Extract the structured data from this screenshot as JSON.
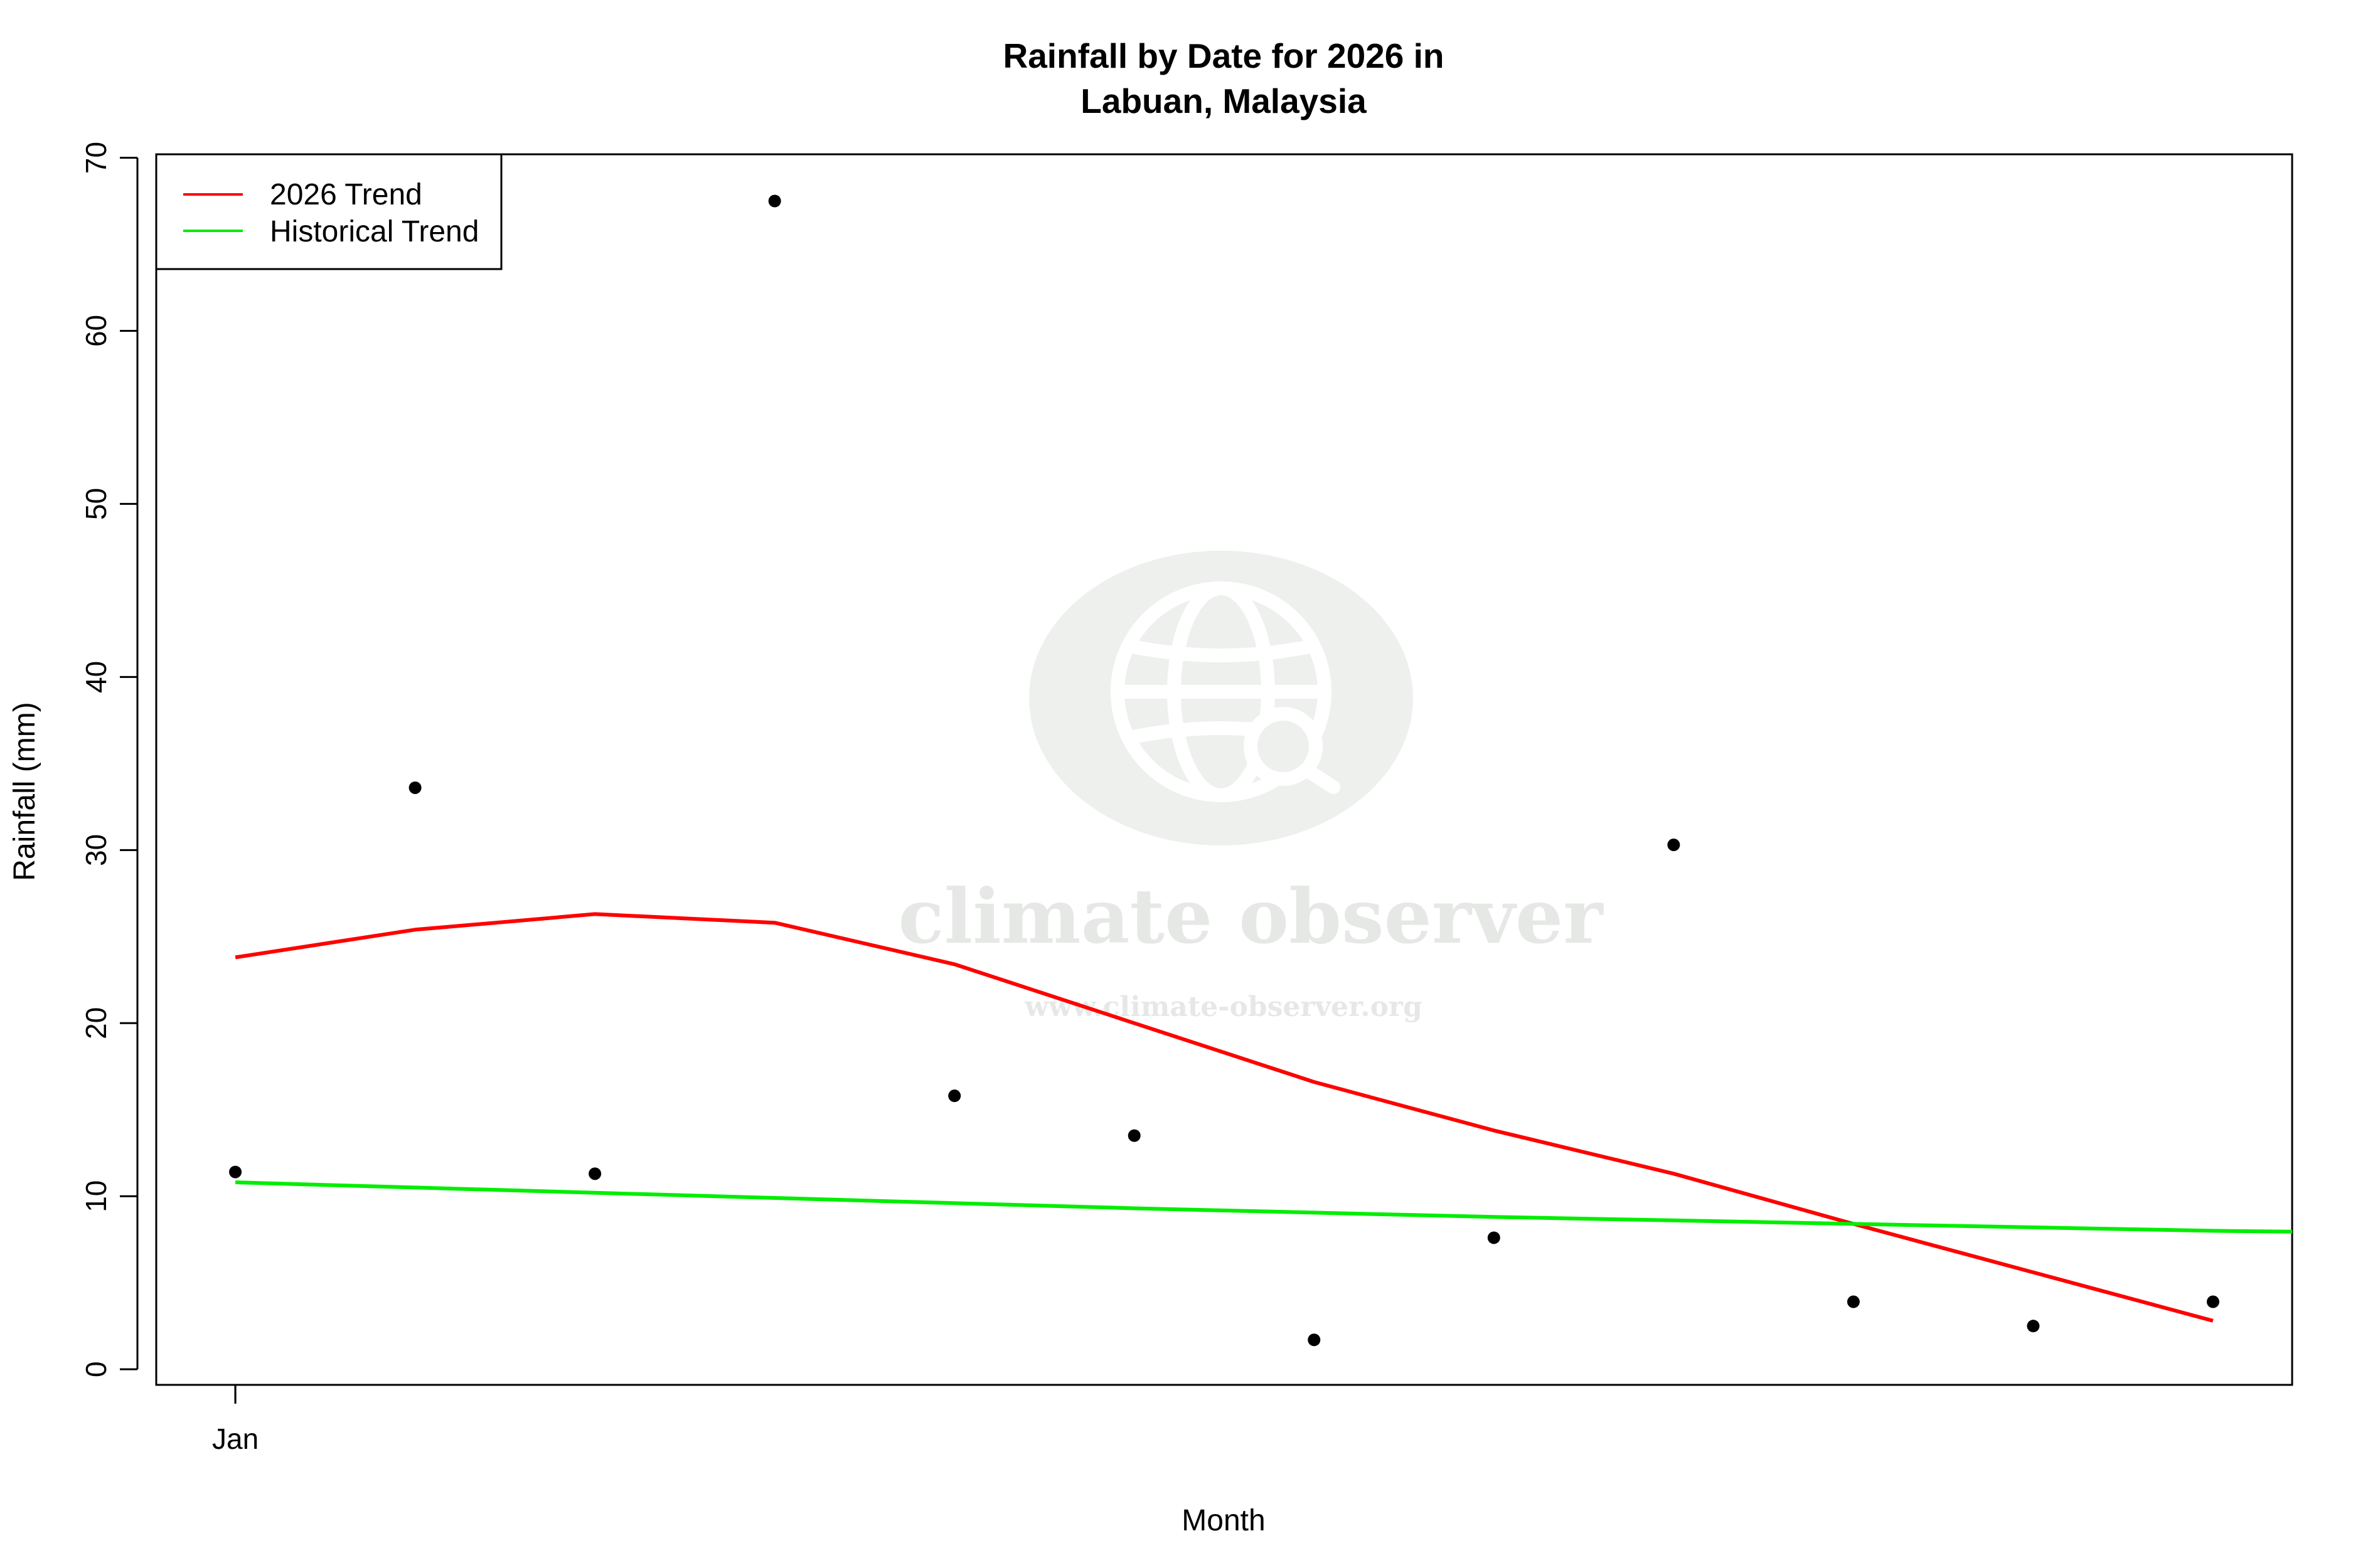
{
  "chart_data": {
    "type": "scatter",
    "title": "Rainfall by Date for 2026 in",
    "subtitle": "Labuan, Malaysia",
    "xlabel": "Month",
    "ylabel": "Rainfall (mm)",
    "x_ticks": [
      {
        "label": "Jan",
        "x": 1
      }
    ],
    "y_ticks": [
      0,
      10,
      20,
      30,
      40,
      50,
      60,
      70
    ],
    "xlim": [
      0.56,
      12.44
    ],
    "ylim": [
      -0.9,
      70.2
    ],
    "grid": false,
    "legend": {
      "position": "top-left",
      "entries": [
        {
          "label": "2026 Trend",
          "color": "#ff0000"
        },
        {
          "label": "Historical Trend",
          "color": "#00ee00"
        }
      ]
    },
    "points": {
      "name": "",
      "color": "#000000",
      "x": [
        1,
        2,
        3,
        4,
        5,
        6,
        7,
        8,
        9,
        10,
        11,
        12
      ],
      "y": [
        11.4,
        33.6,
        11.3,
        67.5,
        15.8,
        13.5,
        1.7,
        7.6,
        30.3,
        3.9,
        2.5,
        3.9
      ]
    },
    "series": [
      {
        "name": "2026 Trend",
        "type": "line",
        "color": "#ff0000",
        "x": [
          1,
          2,
          3,
          4,
          5,
          6,
          7,
          8,
          9,
          10,
          11,
          12
        ],
        "y": [
          23.8,
          25.4,
          26.3,
          25.8,
          23.4,
          20.0,
          16.6,
          13.8,
          11.3,
          8.4,
          5.6,
          2.8
        ]
      },
      {
        "name": "Historical Trend",
        "type": "line",
        "color": "#00ee00",
        "x": [
          1,
          2,
          3,
          4,
          5,
          6,
          7,
          8,
          9,
          10,
          11,
          12,
          12.44
        ],
        "y": [
          10.8,
          10.5,
          10.2,
          9.9,
          9.6,
          9.3,
          9.05,
          8.8,
          8.6,
          8.4,
          8.2,
          8.0,
          7.95
        ]
      }
    ],
    "watermark": {
      "name": "climate observer",
      "url": "www.climate-observer.org",
      "icon": "globe-search-icon",
      "color": "#e9ece9"
    }
  }
}
